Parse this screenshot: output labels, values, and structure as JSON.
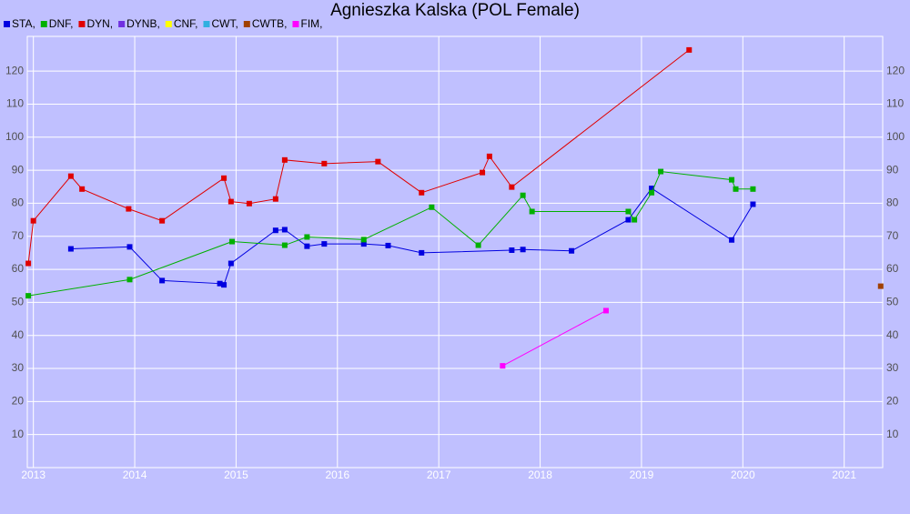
{
  "chart_data": {
    "type": "line",
    "title": "Agnieszka Kalska (POL Female)",
    "series": [
      {
        "name": "STA,",
        "color": "#0000e0",
        "x": [
          2013.37,
          2013.95,
          2014.27,
          2014.84,
          2014.88,
          2014.95,
          2015.39,
          2015.48,
          2015.7,
          2015.87,
          2016.26,
          2016.5,
          2016.83,
          2017.72,
          2017.83,
          2018.31,
          2018.87,
          2019.1,
          2019.89,
          2020.1
        ],
        "values": [
          66.2,
          66.8,
          56.6,
          55.7,
          55.3,
          61.8,
          71.8,
          72.0,
          67.0,
          67.7,
          67.7,
          67.2,
          65.0,
          65.8,
          66.0,
          65.6,
          75.0,
          84.5,
          68.9,
          79.7
        ]
      },
      {
        "name": "DNF,",
        "color": "#00b000",
        "x": [
          2012.95,
          2013.95,
          2014.96,
          2015.48,
          2015.7,
          2016.26,
          2016.93,
          2017.39,
          2017.83,
          2017.92,
          2018.87,
          2018.93,
          2019.1,
          2019.19,
          2019.89,
          2019.93,
          2020.1
        ],
        "values": [
          52.0,
          56.9,
          68.4,
          67.3,
          69.8,
          69.0,
          78.8,
          67.3,
          82.4,
          77.5,
          77.5,
          75.0,
          83.2,
          89.6,
          87.1,
          84.3,
          84.3
        ]
      },
      {
        "name": "DYN,",
        "color": "#e00000",
        "x": [
          2012.95,
          2013.0,
          2013.37,
          2013.48,
          2013.94,
          2014.27,
          2014.88,
          2014.95,
          2015.13,
          2015.39,
          2015.48,
          2015.87,
          2016.4,
          2016.83,
          2017.43,
          2017.5,
          2017.72,
          2019.47
        ],
        "values": [
          61.8,
          74.7,
          88.2,
          84.3,
          78.3,
          74.7,
          87.6,
          80.5,
          79.9,
          81.3,
          93.1,
          92.0,
          92.6,
          83.2,
          89.3,
          94.2,
          84.9,
          126.4
        ]
      },
      {
        "name": "DYNB,",
        "color": "#7030e0",
        "x": [],
        "values": []
      },
      {
        "name": "CNF,",
        "color": "#ffff00",
        "x": [],
        "values": []
      },
      {
        "name": "CWT,",
        "color": "#30b0e0",
        "x": [],
        "values": []
      },
      {
        "name": "CWTB,",
        "color": "#a04000",
        "x": [
          2021.36
        ],
        "values": [
          54.9
        ]
      },
      {
        "name": "FIM,",
        "color": "#ff00ff",
        "x": [
          2017.63,
          2018.65
        ],
        "values": [
          30.8,
          47.5
        ]
      }
    ],
    "xlim": [
      2012.94,
      2021.38
    ],
    "xticks": [
      2013,
      2014,
      2015,
      2016,
      2017,
      2018,
      2019,
      2020,
      2021
    ],
    "ylim": [
      0,
      130.5
    ],
    "yticks": [
      10,
      20,
      30,
      40,
      50,
      60,
      70,
      80,
      90,
      100,
      110,
      120
    ],
    "grid": true
  }
}
